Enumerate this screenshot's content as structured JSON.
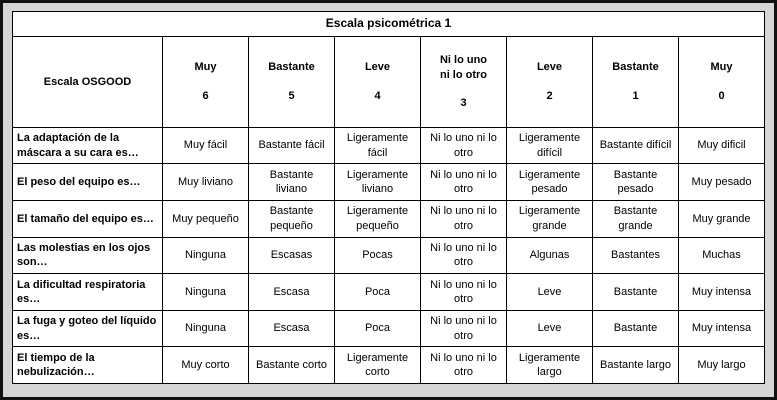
{
  "title": "Escala psicométrica 1",
  "table": {
    "corner_label": "Escala OSGOOD",
    "columns": [
      {
        "label": "Muy",
        "value": "6"
      },
      {
        "label": "Bastante",
        "value": "5"
      },
      {
        "label": "Leve",
        "value": "4"
      },
      {
        "label": "Ni lo uno\nni lo otro",
        "value": "3"
      },
      {
        "label": "Leve",
        "value": "2"
      },
      {
        "label": "Bastante",
        "value": "1"
      },
      {
        "label": "Muy",
        "value": "0"
      }
    ],
    "rows": [
      {
        "label": "La adaptación de la máscara a su cara es…",
        "cells": [
          "Muy fácil",
          "Bastante fácil",
          "Ligeramente fácil",
          "Ni lo uno ni lo otro",
          "Ligeramente difícil",
          "Bastante difícil",
          "Muy dificil"
        ]
      },
      {
        "label": "El peso del equipo es…",
        "cells": [
          "Muy liviano",
          "Bastante liviano",
          "Ligeramente liviano",
          "Ni lo uno ni lo otro",
          "Ligeramente pesado",
          "Bastante pesado",
          "Muy pesado"
        ]
      },
      {
        "label": "El tamaño del equipo es…",
        "cells": [
          "Muy pequeño",
          "Bastante pequeño",
          "Ligeramente pequeño",
          "Ni lo uno ni lo otro",
          "Ligeramente grande",
          "Bastante grande",
          "Muy grande"
        ]
      },
      {
        "label": "Las molestias en los ojos son…",
        "cells": [
          "Ninguna",
          "Escasas",
          "Pocas",
          "Ni lo uno ni lo otro",
          "Algunas",
          "Bastantes",
          "Muchas"
        ]
      },
      {
        "label": "La dificultad respiratoria es…",
        "cells": [
          "Ninguna",
          "Escasa",
          "Poca",
          "Ni lo uno ni lo otro",
          "Leve",
          "Bastante",
          "Muy intensa"
        ]
      },
      {
        "label": "La fuga y goteo del líquido es…",
        "cells": [
          "Ninguna",
          "Escasa",
          "Poca",
          "Ni lo uno ni lo otro",
          "Leve",
          "Bastante",
          "Muy intensa"
        ]
      },
      {
        "label": "El tiempo de la nebulización…",
        "cells": [
          "Muy corto",
          "Bastante corto",
          "Ligeramente corto",
          "Ni lo uno ni lo otro",
          "Ligeramente largo",
          "Bastante largo",
          "Muy largo"
        ]
      }
    ]
  }
}
